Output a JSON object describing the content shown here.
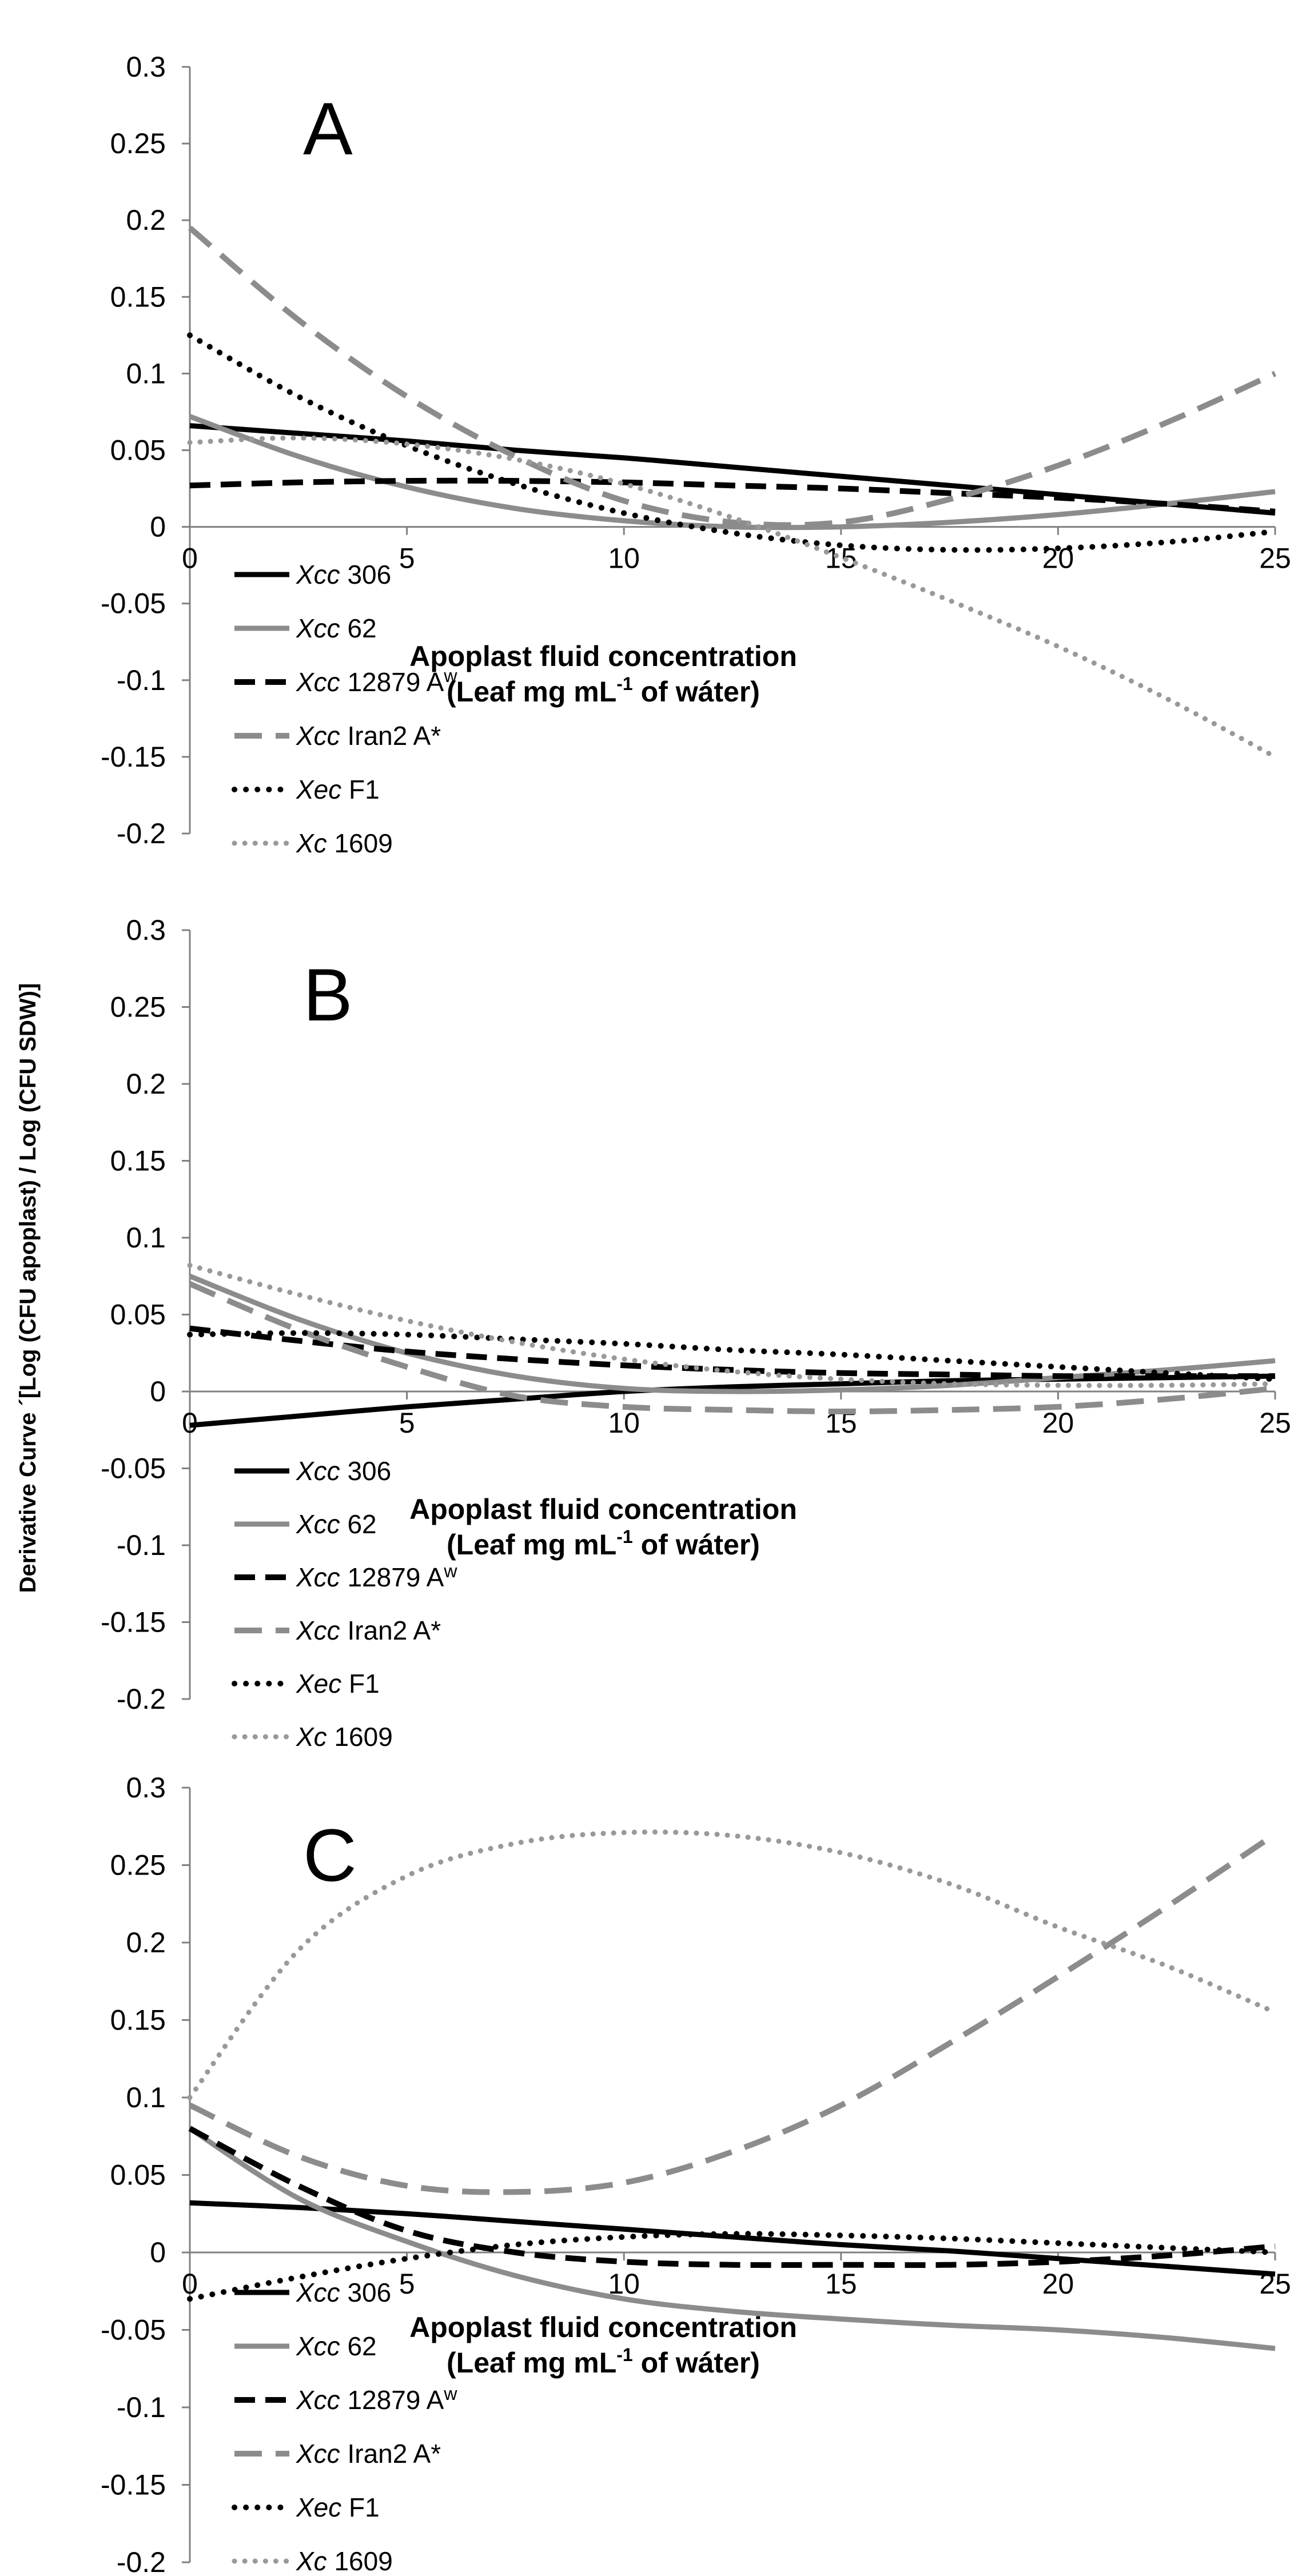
{
  "figure": {
    "y_axis_label": "Derivative Curve ´[Log (CFU apoplast) / Log (CFU SDW)]"
  },
  "chart_data": [
    {
      "type": "line",
      "panel_label": "A",
      "ylabel": "Derivative Curve ´[Log (CFU apoplast) / Log (CFU SDW)]",
      "xlabel_line1": "Apoplast fluid concentration",
      "xlabel_line2_pre": "(Leaf mg mL",
      "xlabel_line2_sup": "-1",
      "xlabel_line2_post": " of wáter)",
      "xlim": [
        0,
        25
      ],
      "ylim": [
        -0.2,
        0.3
      ],
      "x_ticks": [
        "0",
        "5",
        "10",
        "15",
        "20",
        "25"
      ],
      "y_ticks": [
        "-0.2",
        "-0.15",
        "-0.1",
        "-0.05",
        "0",
        "0.05",
        "0.1",
        "0.15",
        "0.2",
        "0.25",
        "0.3"
      ],
      "x": [
        0,
        2.5,
        5,
        7.5,
        10,
        12.5,
        15,
        17.5,
        20,
        22.5,
        25
      ],
      "series": [
        {
          "name": "Xcc 306",
          "name_italic": "Xcc",
          "name_rest": " 306",
          "values": [
            0.066,
            0.061,
            0.056,
            0.05,
            0.045,
            0.039,
            0.033,
            0.027,
            0.021,
            0.015,
            0.009
          ]
        },
        {
          "name": "Xcc 62",
          "name_italic": "Xcc",
          "name_rest": " 62",
          "values": [
            0.072,
            0.046,
            0.026,
            0.012,
            0.004,
            0.0,
            0.0,
            0.003,
            0.008,
            0.015,
            0.023
          ]
        },
        {
          "name": "Xcc 12879 Aw",
          "name_italic": "Xcc",
          "name_rest": " 12879 A",
          "name_sup": "w",
          "values": [
            0.027,
            0.029,
            0.03,
            0.03,
            0.029,
            0.027,
            0.025,
            0.022,
            0.019,
            0.015,
            0.01
          ]
        },
        {
          "name": "Xcc Iran2 A*",
          "name_italic": "Xcc",
          "name_rest": " Iran2 A*",
          "values": [
            0.195,
            0.135,
            0.085,
            0.046,
            0.017,
            0.003,
            0.003,
            0.018,
            0.04,
            0.068,
            0.1
          ]
        },
        {
          "name": "Xec F1",
          "name_italic": "Xec",
          "name_rest": " F1",
          "values": [
            0.125,
            0.085,
            0.053,
            0.028,
            0.009,
            -0.004,
            -0.012,
            -0.015,
            -0.014,
            -0.01,
            -0.003
          ]
        },
        {
          "name": "Xc 1609",
          "name_italic": "Xc",
          "name_rest": " 1609",
          "values": [
            0.055,
            0.058,
            0.054,
            0.044,
            0.028,
            0.006,
            -0.02,
            -0.048,
            -0.078,
            -0.112,
            -0.15
          ]
        }
      ]
    },
    {
      "type": "line",
      "panel_label": "B",
      "ylabel": "Derivative Curve ´[Log (CFU apoplast) / Log (CFU SDW)]",
      "xlabel_line1": "Apoplast fluid concentration",
      "xlabel_line2_pre": "(Leaf mg mL",
      "xlabel_line2_sup": "-1",
      "xlabel_line2_post": " of wáter)",
      "xlim": [
        0,
        25
      ],
      "ylim": [
        -0.2,
        0.3
      ],
      "x_ticks": [
        "0",
        "5",
        "10",
        "15",
        "20",
        "25"
      ],
      "y_ticks": [
        "-0.2",
        "-0.15",
        "-0.1",
        "-0.05",
        "0",
        "0.05",
        "0.1",
        "0.15",
        "0.2",
        "0.25",
        "0.3"
      ],
      "x": [
        0,
        2.5,
        5,
        7.5,
        10,
        12.5,
        15,
        17.5,
        20,
        22.5,
        25
      ],
      "series": [
        {
          "name": "Xcc 306",
          "name_italic": "Xcc",
          "name_rest": " 306",
          "values": [
            -0.022,
            -0.016,
            -0.01,
            -0.005,
            0.0,
            0.003,
            0.005,
            0.007,
            0.008,
            0.009,
            0.01
          ]
        },
        {
          "name": "Xcc 62",
          "name_italic": "Xcc",
          "name_rest": " 62",
          "values": [
            0.075,
            0.047,
            0.025,
            0.01,
            0.002,
            0.0,
            0.001,
            0.004,
            0.009,
            0.014,
            0.02
          ]
        },
        {
          "name": "Xcc 12879 Aw",
          "name_italic": "Xcc",
          "name_rest": " 12879 A",
          "name_sup": "w",
          "values": [
            0.041,
            0.033,
            0.026,
            0.021,
            0.017,
            0.014,
            0.012,
            0.011,
            0.01,
            0.01,
            0.01
          ]
        },
        {
          "name": "Xcc Iran2 A*",
          "name_italic": "Xcc",
          "name_rest": " Iran2 A*",
          "values": [
            0.07,
            0.04,
            0.016,
            -0.003,
            -0.01,
            -0.012,
            -0.013,
            -0.012,
            -0.01,
            -0.005,
            0.002
          ]
        },
        {
          "name": "Xec F1",
          "name_italic": "Xec",
          "name_rest": " F1",
          "values": [
            0.037,
            0.038,
            0.037,
            0.034,
            0.031,
            0.027,
            0.024,
            0.02,
            0.016,
            0.012,
            0.008
          ]
        },
        {
          "name": "Xc 1609",
          "name_italic": "Xc",
          "name_rest": " 1609",
          "values": [
            0.082,
            0.063,
            0.046,
            0.032,
            0.021,
            0.013,
            0.008,
            0.005,
            0.004,
            0.004,
            0.005
          ]
        }
      ]
    },
    {
      "type": "line",
      "panel_label": "C",
      "ylabel": "Derivative Curve ´[Log (CFU apoplast) / Log (CFU SDW)]",
      "xlabel_line1": "Apoplast fluid concentration",
      "xlabel_line2_pre": "(Leaf mg mL",
      "xlabel_line2_sup": "-1",
      "xlabel_line2_post": " of wáter)",
      "xlim": [
        0,
        25
      ],
      "ylim": [
        -0.2,
        0.3
      ],
      "x_ticks": [
        "0",
        "5",
        "10",
        "15",
        "20",
        "25"
      ],
      "y_ticks": [
        "-0.2",
        "-0.15",
        "-0.1",
        "-0.05",
        "0",
        "0.05",
        "0.1",
        "0.15",
        "0.2",
        "0.25",
        "0.3"
      ],
      "x": [
        0,
        2.5,
        5,
        7.5,
        10,
        12.5,
        15,
        17.5,
        20,
        22.5,
        25
      ],
      "series": [
        {
          "name": "Xcc 306",
          "name_italic": "Xcc",
          "name_rest": " 306",
          "values": [
            0.032,
            0.029,
            0.025,
            0.02,
            0.015,
            0.01,
            0.005,
            0.001,
            -0.004,
            -0.009,
            -0.014
          ]
        },
        {
          "name": "Xcc 62",
          "name_italic": "Xcc",
          "name_rest": " 62",
          "values": [
            0.08,
            0.035,
            0.007,
            -0.015,
            -0.03,
            -0.038,
            -0.043,
            -0.047,
            -0.05,
            -0.055,
            -0.062
          ]
        },
        {
          "name": "Xcc 12879 Aw",
          "name_italic": "Xcc",
          "name_rest": " 12879 A",
          "name_sup": "w",
          "values": [
            0.08,
            0.043,
            0.014,
            0.0,
            -0.006,
            -0.008,
            -0.008,
            -0.008,
            -0.006,
            -0.002,
            0.004
          ]
        },
        {
          "name": "Xcc Iran2 A*",
          "name_italic": "Xcc",
          "name_rest": " Iran2 A*",
          "values": [
            0.095,
            0.062,
            0.043,
            0.039,
            0.045,
            0.065,
            0.095,
            0.135,
            0.178,
            0.223,
            0.27
          ]
        },
        {
          "name": "Xec F1",
          "name_italic": "Xec",
          "name_rest": " F1",
          "values": [
            -0.03,
            -0.016,
            -0.004,
            0.005,
            0.01,
            0.012,
            0.011,
            0.009,
            0.006,
            0.003,
            0.0
          ]
        },
        {
          "name": "Xc 1609",
          "name_italic": "Xc",
          "name_rest": " 1609",
          "values": [
            0.1,
            0.195,
            0.243,
            0.264,
            0.271,
            0.269,
            0.258,
            0.238,
            0.21,
            0.185,
            0.155
          ]
        }
      ]
    }
  ]
}
